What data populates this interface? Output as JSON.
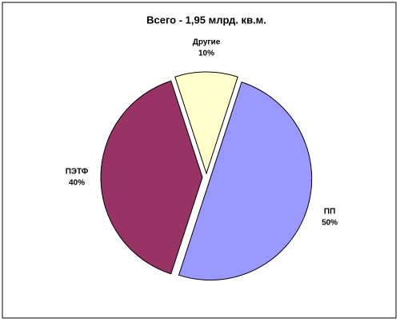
{
  "chart_data": {
    "type": "pie",
    "title": "Всего - 1,95 млрд. кв.м.",
    "categories": [
      "ПП",
      "ПЭТФ",
      "Другие"
    ],
    "values": [
      50,
      40,
      10
    ],
    "value_labels": [
      "50%",
      "40%",
      "10%"
    ],
    "colors": [
      "#9999ff",
      "#993366",
      "#ffffcc"
    ]
  }
}
